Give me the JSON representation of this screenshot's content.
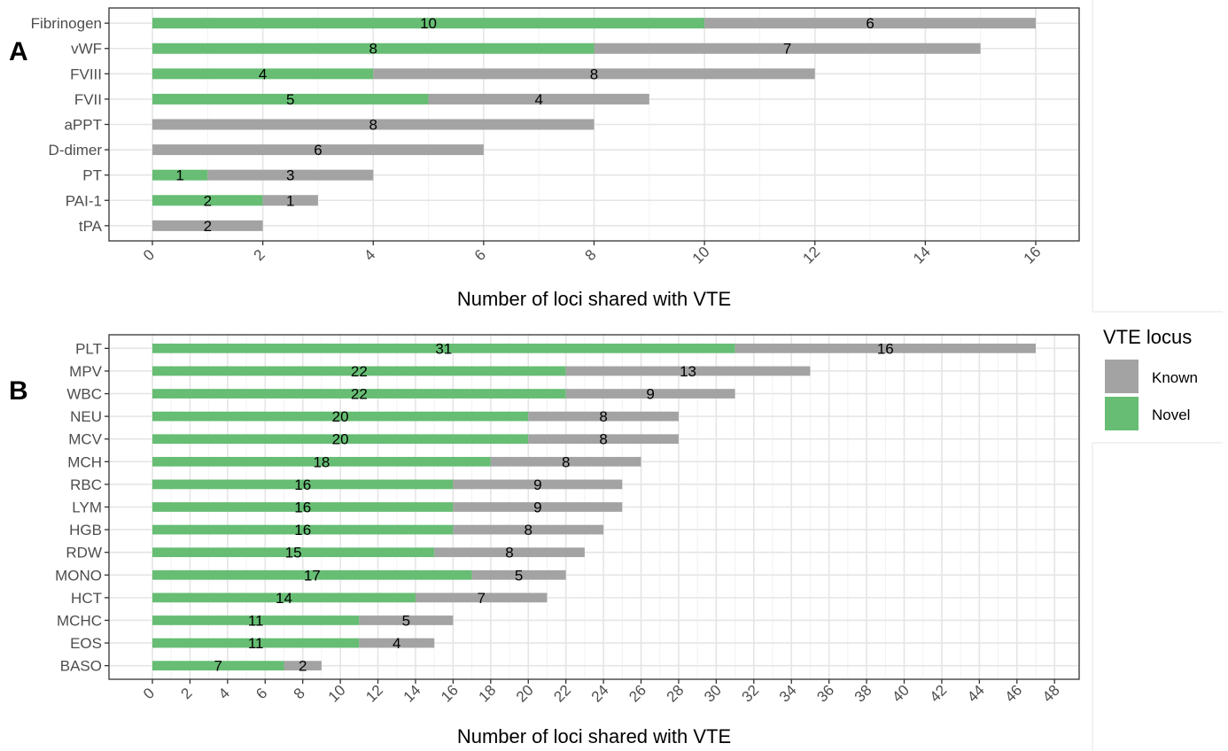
{
  "chart_data": [
    {
      "type": "bar",
      "orientation": "horizontal",
      "stacked": true,
      "panel_tag": "A",
      "categories": [
        "Fibrinogen",
        "vWF",
        "FVIII",
        "FVII",
        "aPPT",
        "D-dimer",
        "PT",
        "PAI-1",
        "tPA"
      ],
      "series": [
        {
          "name": "Novel",
          "color": "#66bd73",
          "values": [
            10,
            8,
            4,
            5,
            0,
            0,
            1,
            2,
            0
          ]
        },
        {
          "name": "Known",
          "color": "#a3a3a3",
          "values": [
            6,
            7,
            8,
            4,
            8,
            6,
            3,
            1,
            2
          ]
        }
      ],
      "xlabel": "Number of loci shared with VTE",
      "xlim": [
        0,
        16
      ],
      "xticks": [
        0,
        2,
        4,
        6,
        8,
        10,
        12,
        14,
        16
      ],
      "grid": true
    },
    {
      "type": "bar",
      "orientation": "horizontal",
      "stacked": true,
      "panel_tag": "B",
      "categories": [
        "PLT",
        "MPV",
        "WBC",
        "NEU",
        "MCV",
        "MCH",
        "RBC",
        "LYM",
        "HGB",
        "RDW",
        "MONO",
        "HCT",
        "MCHC",
        "EOS",
        "BASO"
      ],
      "series": [
        {
          "name": "Novel",
          "color": "#66bd73",
          "values": [
            31,
            22,
            22,
            20,
            20,
            18,
            16,
            16,
            16,
            15,
            17,
            14,
            11,
            11,
            7
          ]
        },
        {
          "name": "Known",
          "color": "#a3a3a3",
          "values": [
            16,
            13,
            9,
            8,
            8,
            8,
            9,
            9,
            8,
            8,
            5,
            7,
            5,
            4,
            2
          ]
        }
      ],
      "xlabel": "Number of loci shared with VTE",
      "xlim": [
        0,
        47
      ],
      "xticks": [
        0,
        2,
        4,
        6,
        8,
        10,
        12,
        14,
        16,
        18,
        20,
        22,
        24,
        26,
        28,
        30,
        32,
        34,
        36,
        38,
        40,
        42,
        44,
        46,
        48
      ],
      "grid": true
    }
  ],
  "legend": {
    "title": "VTE locus",
    "placement": "right",
    "items": [
      {
        "label": "Known",
        "color": "#a3a3a3"
      },
      {
        "label": "Novel",
        "color": "#66bd73"
      }
    ]
  }
}
